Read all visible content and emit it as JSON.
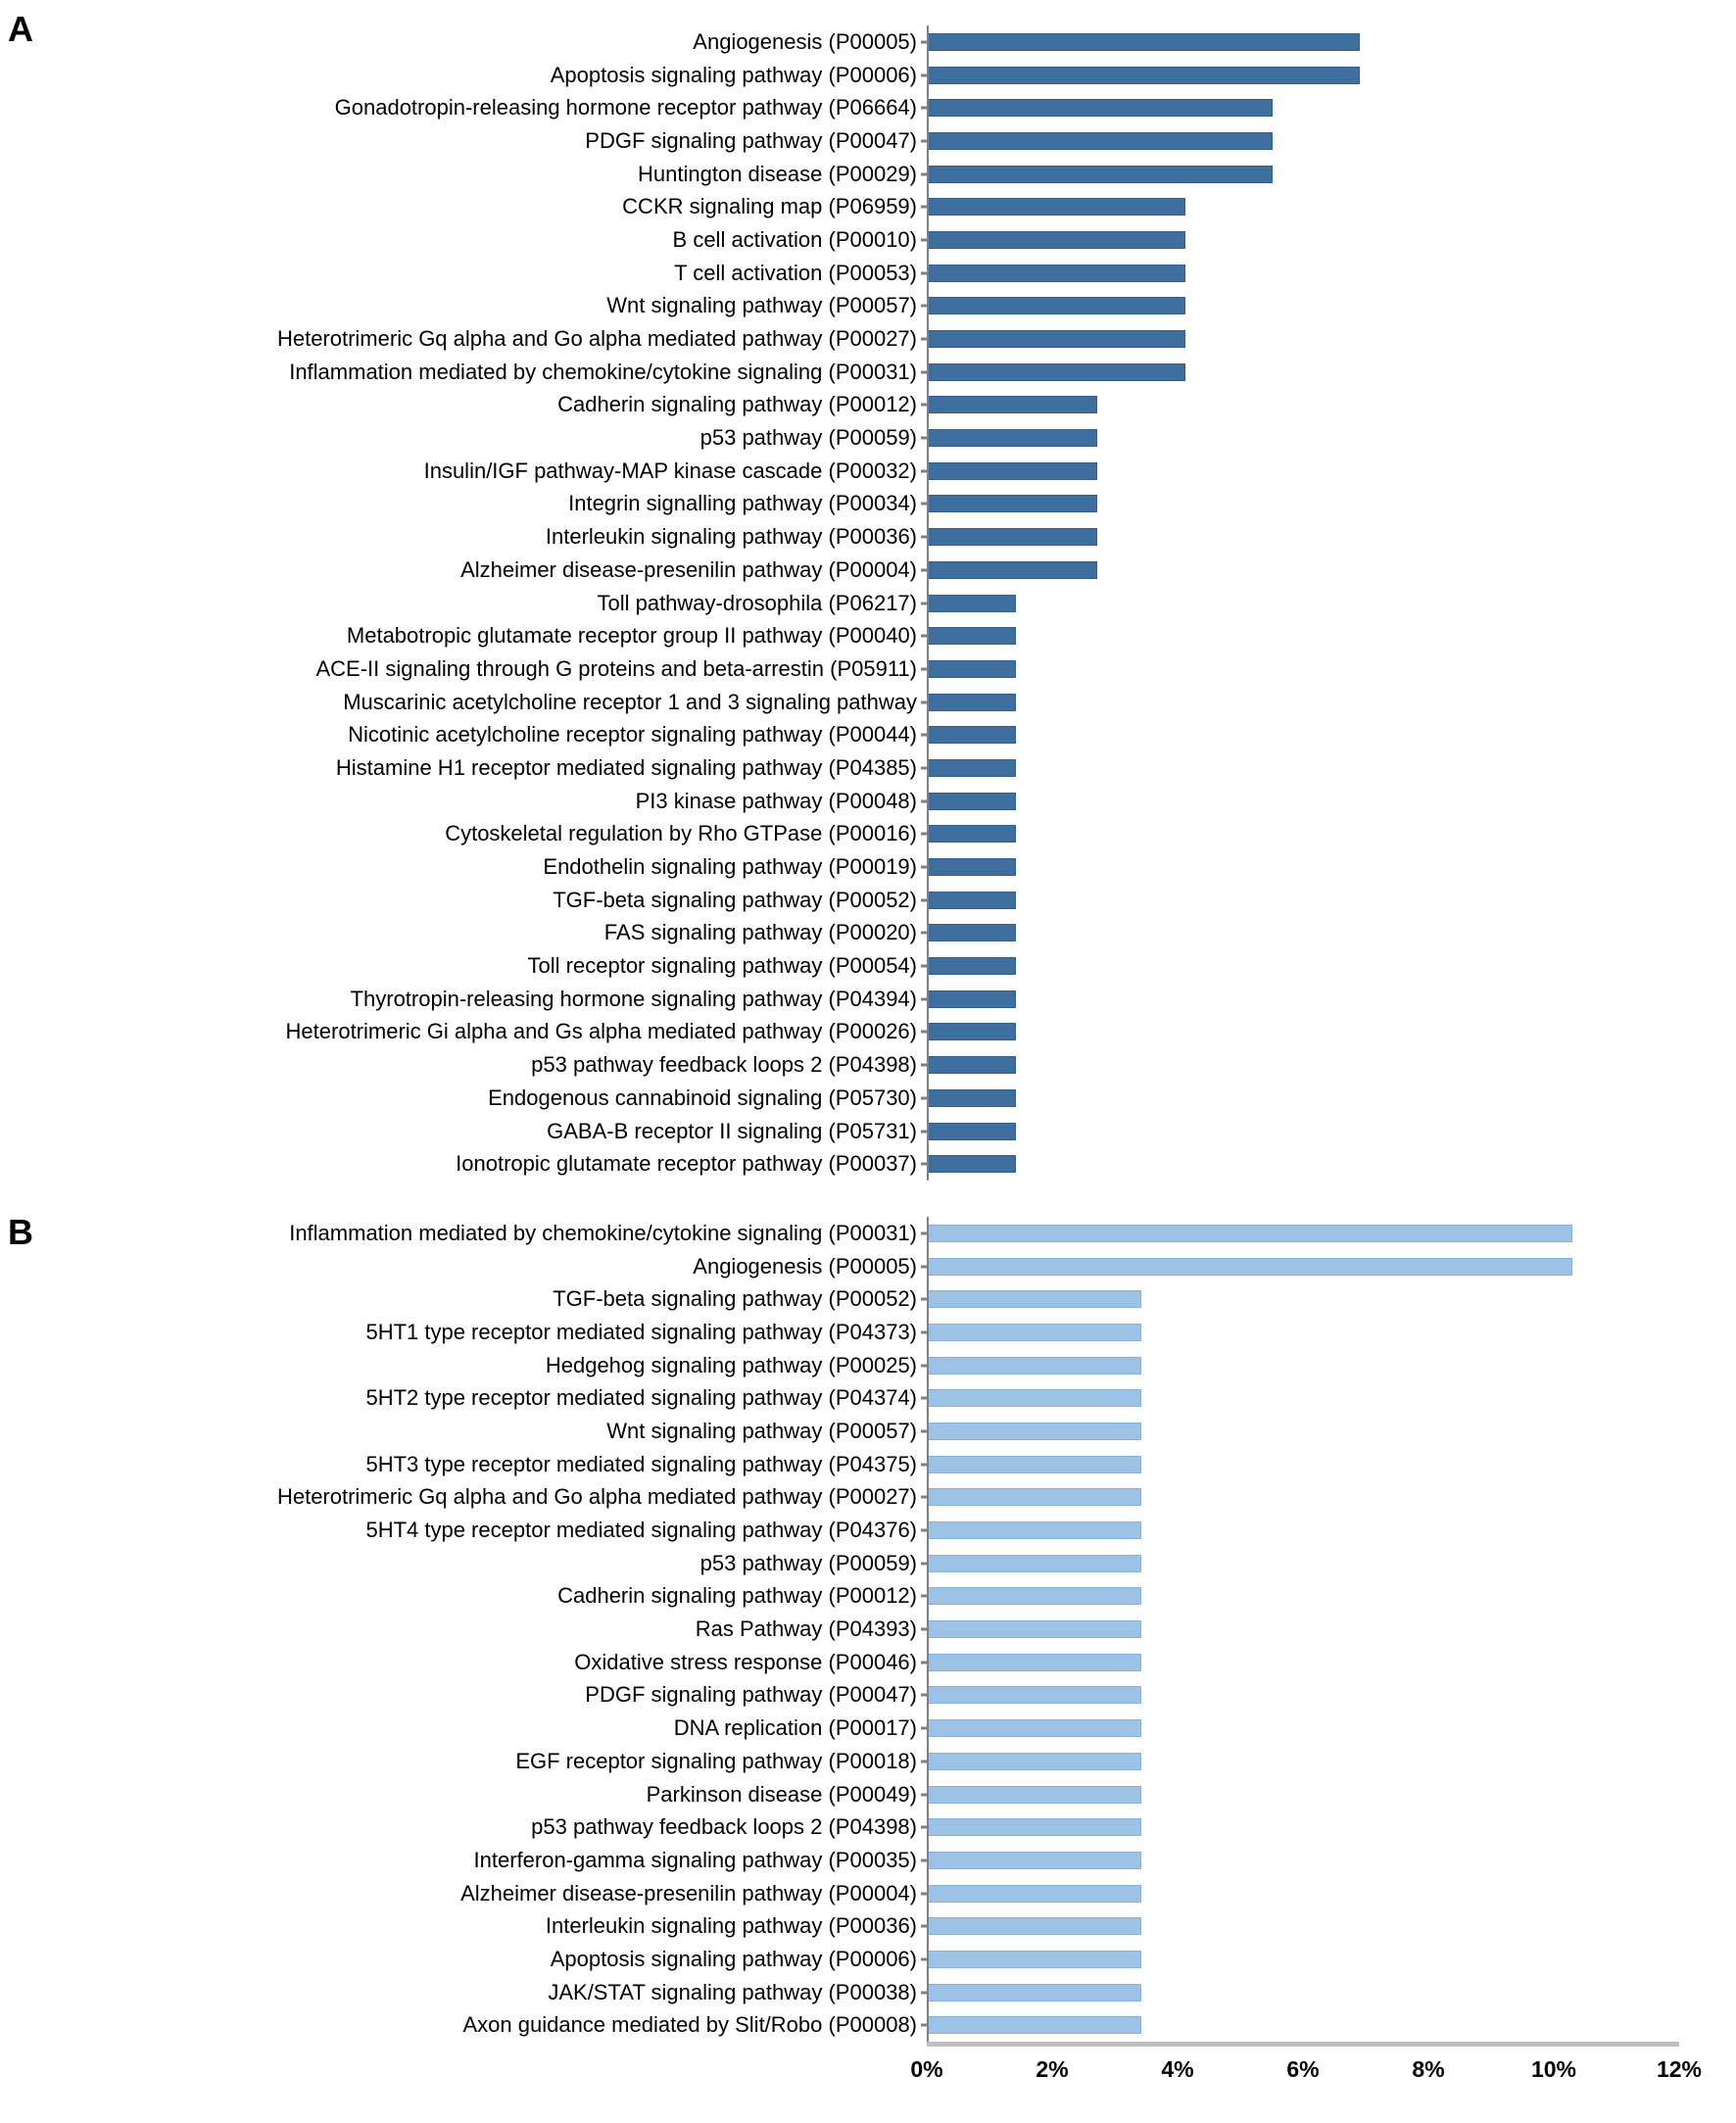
{
  "colors": {
    "panel_a_bar": "#3E6E9E",
    "panel_a_bar_border": "#31608E",
    "panel_b_bar": "#9CC2E5",
    "panel_b_bar_border": "#86B0D8",
    "axis_line": "#7F7F7F",
    "baseline": "#BFBFBF"
  },
  "chart_data": [
    {
      "type": "bar",
      "orientation": "horizontal",
      "panel_label": "A",
      "title": "",
      "xlabel": "",
      "ylabel": "",
      "grid": false,
      "legend": null,
      "xlim": [
        0,
        12
      ],
      "x_tick_labels": [
        "0%",
        "2%",
        "4%",
        "6%",
        "8%",
        "10%",
        "12%"
      ],
      "bar_color": "#3E6E9E",
      "bar_border_color": "#31608E",
      "categories": [
        "Angiogenesis (P00005)",
        "Apoptosis signaling pathway (P00006)",
        "Gonadotropin-releasing hormone receptor pathway (P06664)",
        "PDGF signaling pathway (P00047)",
        "Huntington disease (P00029)",
        "CCKR signaling map (P06959)",
        "B cell activation (P00010)",
        "T cell activation (P00053)",
        "Wnt signaling pathway (P00057)",
        "Heterotrimeric Gq alpha and Go alpha mediated pathway (P00027)",
        "Inflammation mediated by chemokine/cytokine signaling (P00031)",
        "Cadherin signaling pathway (P00012)",
        "p53 pathway (P00059)",
        "Insulin/IGF pathway-MAP kinase cascade (P00032)",
        "Integrin signalling pathway (P00034)",
        "Interleukin signaling pathway (P00036)",
        "Alzheimer disease-presenilin pathway (P00004)",
        "Toll pathway-drosophila (P06217)",
        "Metabotropic glutamate receptor group II pathway (P00040)",
        "ACE-II signaling through G proteins and beta-arrestin (P05911)",
        "Muscarinic acetylcholine receptor 1 and 3 signaling pathway",
        "Nicotinic acetylcholine receptor signaling pathway (P00044)",
        "Histamine H1 receptor mediated signaling pathway (P04385)",
        "PI3 kinase pathway (P00048)",
        "Cytoskeletal regulation by Rho GTPase (P00016)",
        "Endothelin signaling pathway (P00019)",
        "TGF-beta signaling pathway (P00052)",
        "FAS signaling pathway (P00020)",
        "Toll receptor signaling pathway (P00054)",
        "Thyrotropin-releasing hormone signaling pathway (P04394)",
        "Heterotrimeric Gi alpha and Gs alpha mediated pathway (P00026)",
        "p53 pathway feedback loops 2 (P04398)",
        "Endogenous cannabinoid signaling (P05730)",
        "GABA-B receptor II signaling (P05731)",
        "Ionotropic glutamate receptor pathway (P00037)"
      ],
      "values": [
        6.9,
        6.9,
        5.5,
        5.5,
        5.5,
        4.1,
        4.1,
        4.1,
        4.1,
        4.1,
        4.1,
        2.7,
        2.7,
        2.7,
        2.7,
        2.7,
        2.7,
        1.4,
        1.4,
        1.4,
        1.4,
        1.4,
        1.4,
        1.4,
        1.4,
        1.4,
        1.4,
        1.4,
        1.4,
        1.4,
        1.4,
        1.4,
        1.4,
        1.4,
        1.4
      ]
    },
    {
      "type": "bar",
      "orientation": "horizontal",
      "panel_label": "B",
      "title": "",
      "xlabel": "",
      "ylabel": "",
      "grid": false,
      "legend": null,
      "xlim": [
        0,
        12
      ],
      "x_tick_labels": [
        "0%",
        "2%",
        "4%",
        "6%",
        "8%",
        "10%",
        "12%"
      ],
      "bar_color": "#9CC2E5",
      "bar_border_color": "#86B0D8",
      "categories": [
        "Inflammation mediated by chemokine/cytokine signaling (P00031)",
        "Angiogenesis (P00005)",
        "TGF-beta signaling pathway (P00052)",
        "5HT1 type receptor mediated signaling pathway (P04373)",
        "Hedgehog signaling pathway (P00025)",
        "5HT2 type receptor mediated signaling pathway (P04374)",
        "Wnt signaling pathway (P00057)",
        "5HT3 type receptor mediated signaling pathway (P04375)",
        "Heterotrimeric Gq alpha and Go alpha mediated pathway (P00027)",
        "5HT4 type receptor mediated signaling pathway (P04376)",
        "p53 pathway (P00059)",
        "Cadherin signaling pathway (P00012)",
        "Ras Pathway (P04393)",
        "Oxidative stress response (P00046)",
        "PDGF signaling pathway (P00047)",
        "DNA replication (P00017)",
        "EGF receptor signaling pathway (P00018)",
        "Parkinson disease (P00049)",
        "p53 pathway feedback loops 2 (P04398)",
        "Interferon-gamma signaling pathway (P00035)",
        "Alzheimer disease-presenilin pathway (P00004)",
        "Interleukin signaling pathway (P00036)",
        "Apoptosis signaling pathway (P00006)",
        "JAK/STAT signaling pathway (P00038)",
        "Axon guidance mediated by Slit/Robo (P00008)"
      ],
      "values": [
        10.3,
        10.3,
        3.4,
        3.4,
        3.4,
        3.4,
        3.4,
        3.4,
        3.4,
        3.4,
        3.4,
        3.4,
        3.4,
        3.4,
        3.4,
        3.4,
        3.4,
        3.4,
        3.4,
        3.4,
        3.4,
        3.4,
        3.4,
        3.4,
        3.4
      ]
    }
  ]
}
